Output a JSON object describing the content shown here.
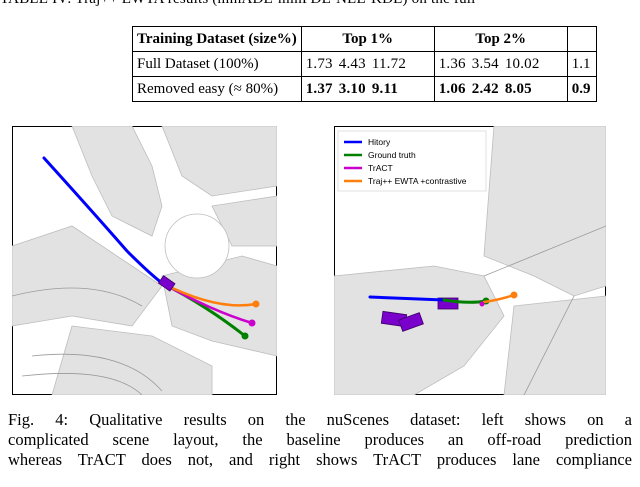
{
  "table_caption": "TABLE IV: Traj++ EWTA results (minADE-minFDE-NLL-KDE) on the full",
  "table": {
    "header": [
      "Training Dataset (size%)",
      "Top 1%",
      "Top 2%",
      ""
    ],
    "rows": [
      {
        "label": "Full Dataset (100%)",
        "top1": [
          "1.73",
          "4.43",
          "11.72"
        ],
        "top2": [
          "1.36",
          "3.54",
          "10.02"
        ],
        "extra": "1.1"
      },
      {
        "label": "Removed easy (≈ 80%)",
        "top1": [
          "1.37",
          "3.10",
          "9.11"
        ],
        "top2": [
          "1.06",
          "2.42",
          "8.05"
        ],
        "extra": "0.9"
      }
    ]
  },
  "legend": {
    "items": [
      {
        "label": "Hitory",
        "color": "#0000ff"
      },
      {
        "label": "Ground truth",
        "color": "#008000"
      },
      {
        "label": "TrACT",
        "color": "#cc00cc"
      },
      {
        "label": "Traj++ EWTA +contrastive",
        "color": "#ff7f0e"
      }
    ]
  },
  "caption_lines": [
    "Fig. 4: Qualitative results on the nuScenes dataset: left shows on a",
    "complicated scene layout, the baseline produces an off-road prediction",
    "whereas TrACT does not, and right shows TrACT produces lane compliance"
  ]
}
